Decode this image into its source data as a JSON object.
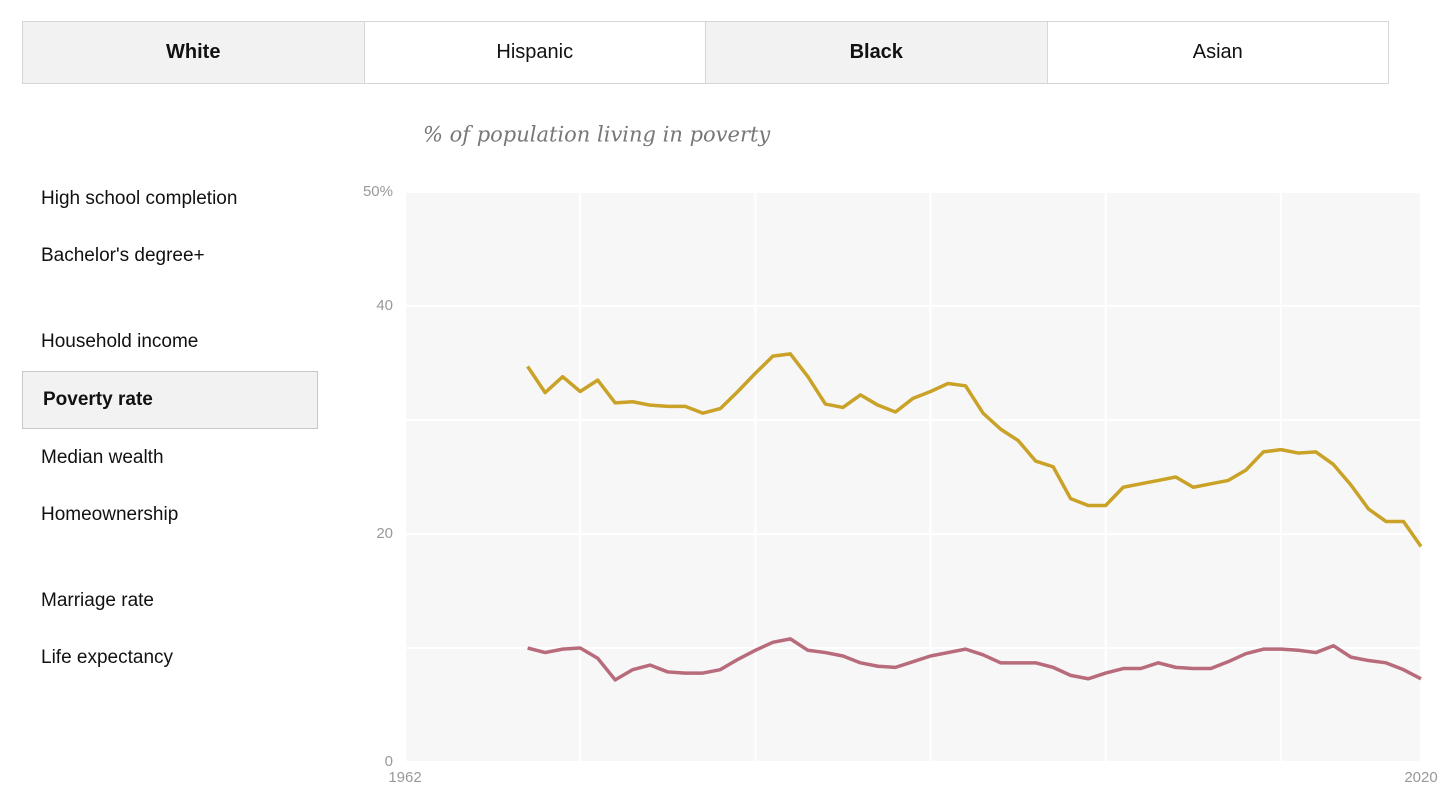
{
  "tabs": [
    {
      "label": "White",
      "selected": true
    },
    {
      "label": "Hispanic",
      "selected": false
    },
    {
      "label": "Black",
      "selected": true
    },
    {
      "label": "Asian",
      "selected": false
    }
  ],
  "menu": [
    {
      "label": "High school completion",
      "selected": false
    },
    {
      "label": "Bachelor's degree+",
      "selected": false
    },
    {
      "label": "Household income",
      "selected": false
    },
    {
      "label": "Poverty rate",
      "selected": true
    },
    {
      "label": "Median wealth",
      "selected": false
    },
    {
      "label": "Homeownership",
      "selected": false
    },
    {
      "label": "Marriage rate",
      "selected": false
    },
    {
      "label": "Life expectancy",
      "selected": false
    }
  ],
  "chart_data": {
    "type": "line",
    "subtitle": "% of population living in poverty",
    "x": [
      1969,
      1970,
      1971,
      1972,
      1973,
      1974,
      1975,
      1976,
      1977,
      1978,
      1979,
      1980,
      1981,
      1982,
      1983,
      1984,
      1985,
      1986,
      1987,
      1988,
      1989,
      1990,
      1991,
      1992,
      1993,
      1994,
      1995,
      1996,
      1997,
      1998,
      1999,
      2000,
      2001,
      2002,
      2003,
      2004,
      2005,
      2006,
      2007,
      2008,
      2009,
      2010,
      2011,
      2012,
      2013,
      2014,
      2015,
      2016,
      2017,
      2018,
      2019,
      2020
    ],
    "series": [
      {
        "color": "#c9a227",
        "values": [
          34.7,
          32.4,
          33.8,
          32.5,
          33.5,
          31.5,
          31.6,
          31.3,
          31.2,
          31.2,
          30.6,
          31.0,
          32.5,
          34.1,
          35.6,
          35.8,
          33.8,
          31.4,
          31.1,
          32.2,
          31.3,
          30.7,
          31.9,
          32.5,
          33.2,
          33.0,
          30.6,
          29.2,
          28.2,
          26.4,
          25.9,
          23.1,
          22.5,
          22.5,
          24.1,
          24.4,
          24.7,
          25.0,
          24.1,
          24.4,
          24.7,
          25.6,
          27.2,
          27.4,
          27.1,
          27.2,
          26.1,
          24.3,
          22.2,
          21.1,
          21.1,
          18.9
        ]
      },
      {
        "color": "#b86b7b",
        "values": [
          10.0,
          9.6,
          9.9,
          10.0,
          9.1,
          7.2,
          8.1,
          8.5,
          7.9,
          7.8,
          7.8,
          8.1,
          9.0,
          9.8,
          10.5,
          10.8,
          9.8,
          9.6,
          9.3,
          8.7,
          8.4,
          8.3,
          8.8,
          9.3,
          9.6,
          9.9,
          9.4,
          8.7,
          8.7,
          8.7,
          8.3,
          7.6,
          7.3,
          7.8,
          8.2,
          8.2,
          8.7,
          8.3,
          8.2,
          8.2,
          8.8,
          9.5,
          9.9,
          9.9,
          9.8,
          9.6,
          10.2,
          9.2,
          8.9,
          8.7,
          8.1,
          7.3
        ]
      }
    ],
    "xlim": [
      1962,
      2020
    ],
    "xticks": [
      1962,
      {
        "value": 1972,
        "label": null
      },
      {
        "value": 1982,
        "label": null
      },
      {
        "value": 1992,
        "label": null
      },
      {
        "value": 2002,
        "label": null
      },
      {
        "value": 2012,
        "label": null
      },
      2020
    ],
    "ylim": [
      0,
      50
    ],
    "yticks": [
      0,
      {
        "value": 10,
        "label": null
      },
      20,
      {
        "value": 30,
        "label": null
      },
      40,
      {
        "value": 50,
        "label": "50%"
      }
    ],
    "grid": true
  }
}
